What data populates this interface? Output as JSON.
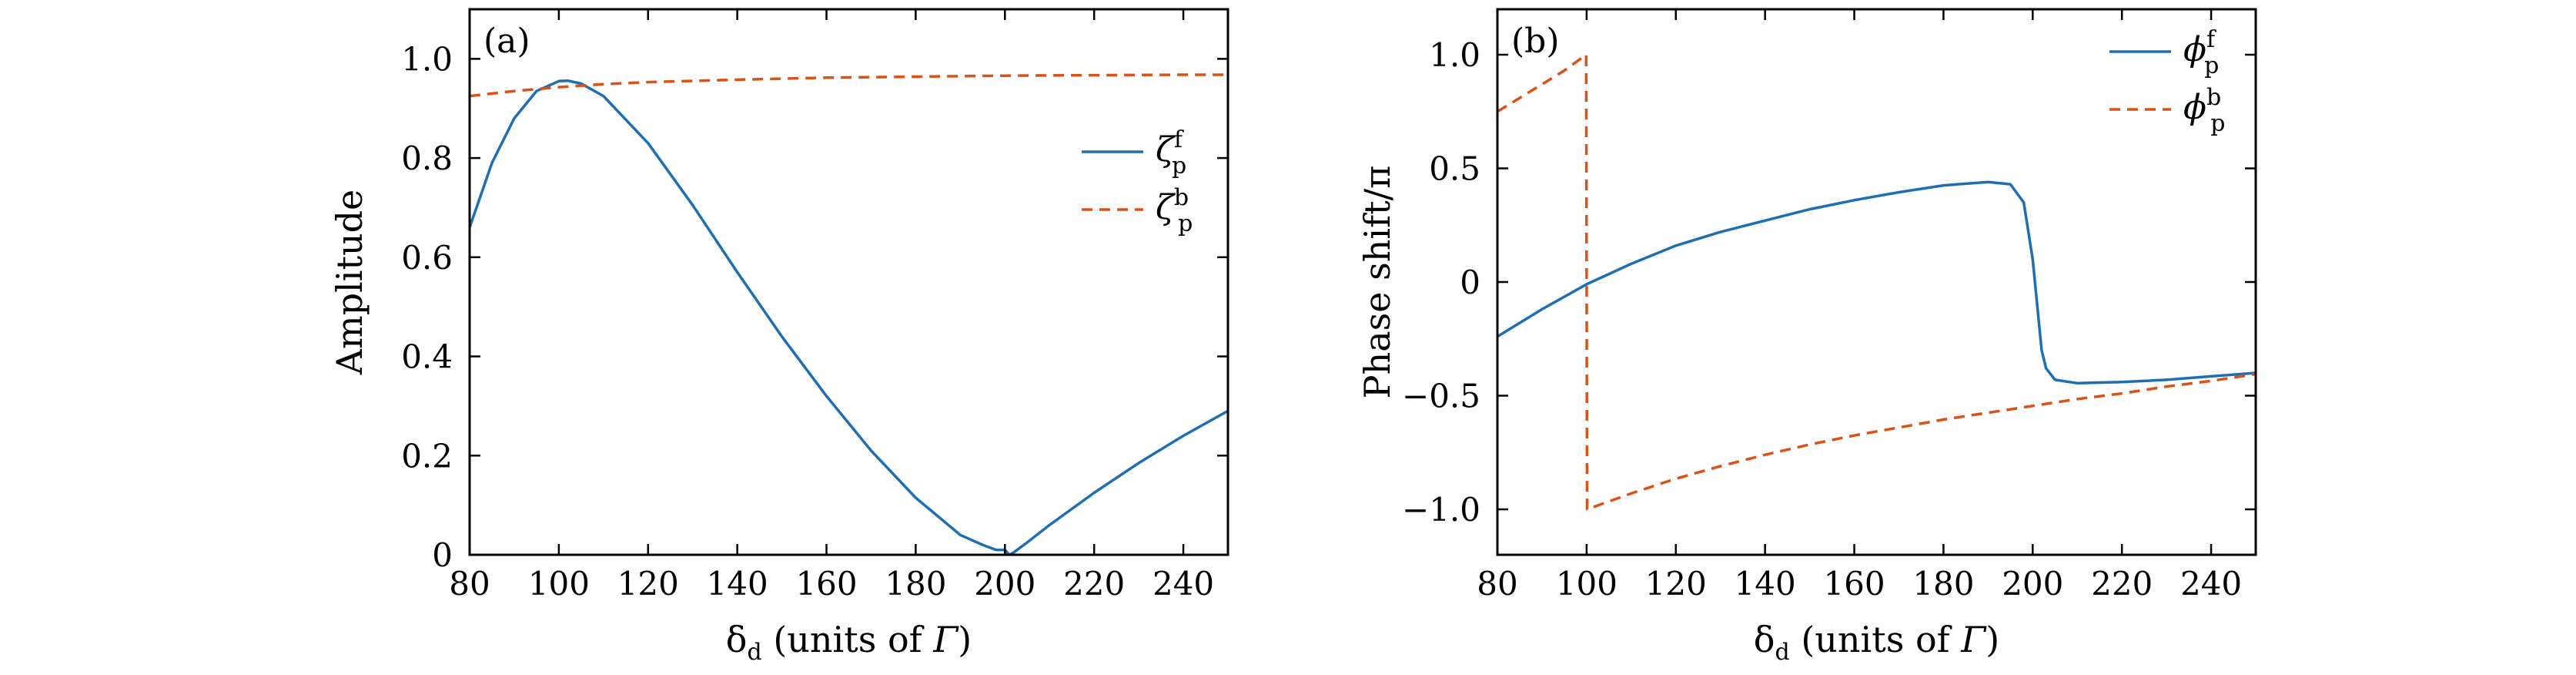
{
  "chart_data": [
    {
      "type": "line",
      "panel_label": "(a)",
      "xlabel": {
        "main": "δ",
        "sub": "d",
        "rest": " (units of ",
        "italic": "Γ",
        "close": ")"
      },
      "ylabel": "Amplitude",
      "xlim": [
        80,
        250
      ],
      "ylim": [
        0,
        1.1
      ],
      "x_ticks": [
        80,
        100,
        120,
        140,
        160,
        180,
        200,
        220,
        240
      ],
      "y_ticks": [
        0,
        0.2,
        0.4,
        0.6,
        0.8,
        1.0
      ],
      "y_tick_labels": [
        "0",
        "0.2",
        "0.4",
        "0.6",
        "0.8",
        "1.0"
      ],
      "legend_position": "right",
      "series": [
        {
          "name": {
            "base": "ζ",
            "sup": "f",
            "sub": "p"
          },
          "style": "solid",
          "color": "#1f6fb0",
          "x": [
            80,
            85,
            90,
            95,
            100,
            102,
            105,
            110,
            120,
            130,
            140,
            150,
            160,
            170,
            180,
            190,
            195,
            198,
            200,
            201,
            202,
            205,
            210,
            220,
            230,
            240,
            250
          ],
          "y": [
            0.66,
            0.79,
            0.88,
            0.935,
            0.955,
            0.956,
            0.95,
            0.925,
            0.83,
            0.705,
            0.57,
            0.44,
            0.32,
            0.21,
            0.115,
            0.04,
            0.02,
            0.01,
            0.01,
            0.0,
            0.005,
            0.025,
            0.06,
            0.125,
            0.185,
            0.24,
            0.29
          ]
        },
        {
          "name": {
            "base": "ζ",
            "sup": "b",
            "sub": "p"
          },
          "style": "dashed",
          "color": "#d95319",
          "x": [
            80,
            90,
            100,
            110,
            120,
            140,
            160,
            180,
            200,
            220,
            240,
            250
          ],
          "y": [
            0.925,
            0.935,
            0.943,
            0.949,
            0.953,
            0.958,
            0.962,
            0.964,
            0.966,
            0.967,
            0.968,
            0.968
          ]
        }
      ]
    },
    {
      "type": "line",
      "panel_label": "(b)",
      "xlabel": {
        "main": "δ",
        "sub": "d",
        "rest": " (units of ",
        "italic": "Γ",
        "close": ")"
      },
      "ylabel": "Phase shift/π",
      "xlim": [
        80,
        250
      ],
      "ylim": [
        -1.2,
        1.2
      ],
      "x_ticks": [
        80,
        100,
        120,
        140,
        160,
        180,
        200,
        220,
        240
      ],
      "y_ticks": [
        -1.0,
        -0.5,
        0,
        0.5,
        1.0
      ],
      "y_tick_labels": [
        "−1.0",
        "−0.5",
        "0",
        "0.5",
        "1.0"
      ],
      "legend_position": "top-right",
      "series": [
        {
          "name": {
            "base": "ϕ",
            "sup": "f",
            "sub": "p"
          },
          "style": "solid",
          "color": "#1f6fb0",
          "x": [
            80,
            90,
            100,
            110,
            120,
            130,
            140,
            150,
            160,
            170,
            180,
            190,
            195,
            198,
            200,
            201,
            202,
            203,
            205,
            210,
            220,
            230,
            240,
            250
          ],
          "y": [
            -0.24,
            -0.12,
            -0.01,
            0.08,
            0.16,
            0.22,
            0.27,
            0.32,
            0.36,
            0.395,
            0.425,
            0.44,
            0.43,
            0.35,
            0.1,
            -0.1,
            -0.3,
            -0.38,
            -0.43,
            -0.445,
            -0.44,
            -0.43,
            -0.415,
            -0.4
          ]
        },
        {
          "name": {
            "base": "ϕ",
            "sup": "b",
            "sub": "p"
          },
          "style": "dashed",
          "color": "#d95319",
          "x": [
            80,
            85,
            90,
            95,
            99.9,
            100,
            100.1,
            105,
            110,
            120,
            130,
            140,
            150,
            160,
            170,
            180,
            190,
            200,
            210,
            220,
            230,
            240,
            250
          ],
          "y": [
            0.75,
            0.81,
            0.87,
            0.93,
            1.0,
            0.0,
            -1.0,
            -0.965,
            -0.93,
            -0.865,
            -0.81,
            -0.76,
            -0.715,
            -0.675,
            -0.64,
            -0.605,
            -0.575,
            -0.545,
            -0.515,
            -0.49,
            -0.46,
            -0.435,
            -0.405
          ]
        }
      ]
    }
  ]
}
